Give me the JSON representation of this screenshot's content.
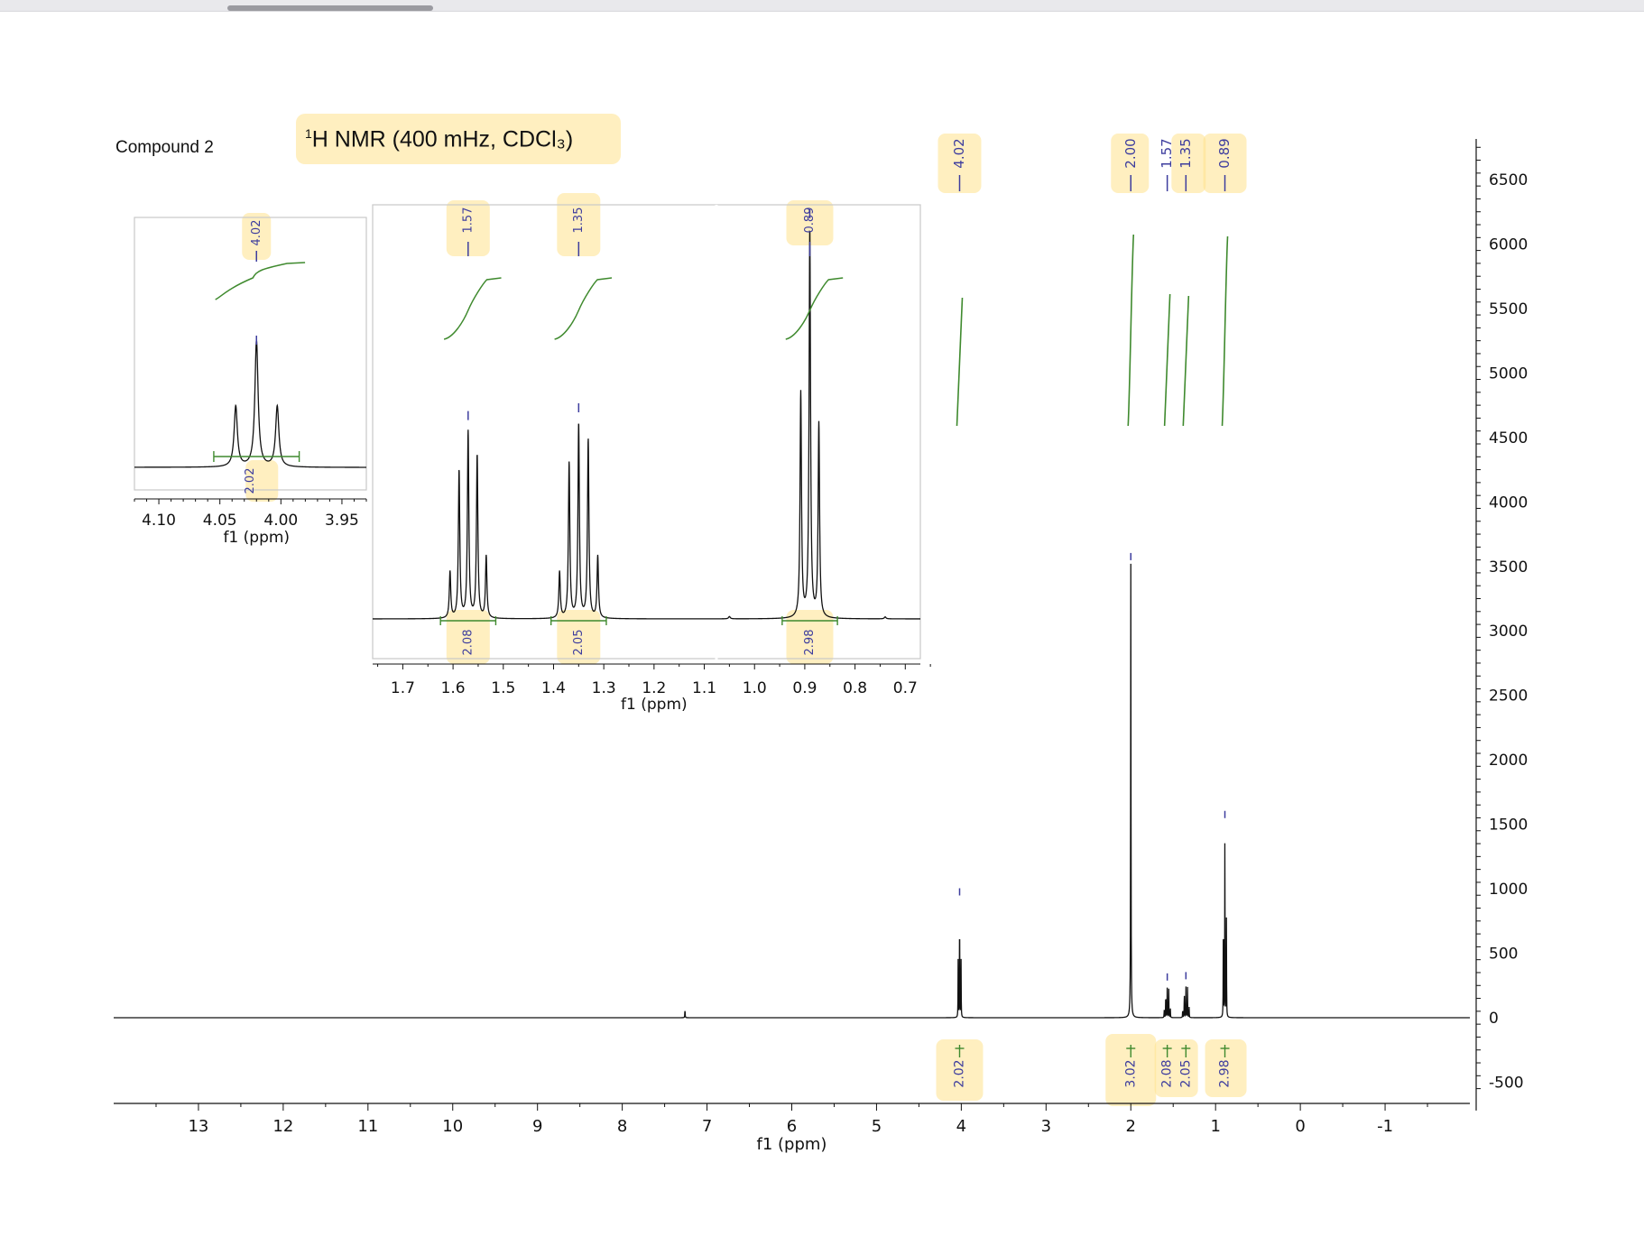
{
  "title": {
    "compound": "Compound 2",
    "method_sup": "1",
    "method_rest": "H NMR (400 mHz, CDCl₃)"
  },
  "chart_data": [
    {
      "id": "main",
      "type": "line",
      "xlabel": "f1 (ppm)",
      "ylabel": "",
      "xlim": [
        14,
        -2
      ],
      "ylim": [
        -650,
        6500
      ],
      "x_ticks": [
        "13",
        "12",
        "11",
        "10",
        "9",
        "8",
        "7",
        "6",
        "5",
        "4",
        "3",
        "2",
        "1",
        "0",
        "-1"
      ],
      "y_ticks": [
        "6500",
        "6000",
        "5500",
        "5000",
        "4500",
        "4000",
        "3500",
        "3000",
        "2500",
        "2000",
        "1500",
        "1000",
        "500",
        "0",
        "-500"
      ],
      "peak_labels": [
        "4.02",
        "2.00",
        "1.57",
        "1.35",
        "0.89"
      ],
      "peaks": [
        {
          "shift": 7.26,
          "height": 60
        },
        {
          "shift": 4.02,
          "height": 920
        },
        {
          "shift": 2.0,
          "height": 3520
        },
        {
          "shift": 1.57,
          "height": 260
        },
        {
          "shift": 1.35,
          "height": 270
        },
        {
          "shift": 0.89,
          "height": 1520
        }
      ],
      "integrals": [
        {
          "label": "2.02",
          "shift": 4.02
        },
        {
          "label": "3.02",
          "shift": 2.0
        },
        {
          "label": "2.08",
          "shift": 1.57
        },
        {
          "label": "2.05",
          "shift": 1.35
        },
        {
          "label": "2.98",
          "shift": 0.89
        }
      ]
    },
    {
      "id": "inset1",
      "type": "line",
      "xlabel": "f1 (ppm)",
      "xlim": [
        4.12,
        3.93
      ],
      "x_ticks": [
        "4.10",
        "4.05",
        "4.00",
        "3.95"
      ],
      "peak_labels": [
        "4.02"
      ],
      "multiplet": {
        "center": 4.02,
        "lines": [
          4.037,
          4.02,
          4.003
        ],
        "heights": [
          0.48,
          1.0,
          0.48
        ]
      },
      "integrals": [
        {
          "label": "2.02",
          "shift": 4.02
        }
      ]
    },
    {
      "id": "inset2",
      "type": "line",
      "xlabel": "f1 (ppm)",
      "xlim": [
        1.76,
        0.67
      ],
      "x_ticks": [
        "1.7",
        "1.6",
        "1.5",
        "1.4",
        "1.3",
        "1.2",
        "1.1",
        "1.0",
        "0.9",
        "0.8",
        "0.7"
      ],
      "peak_labels": [
        "1.57",
        "1.35",
        "0.89"
      ],
      "multiplets": [
        {
          "center": 1.57,
          "lines": [
            1.606,
            1.588,
            1.57,
            1.552,
            1.534
          ],
          "heights": [
            0.12,
            0.38,
            0.48,
            0.42,
            0.16
          ]
        },
        {
          "center": 1.35,
          "lines": [
            1.388,
            1.369,
            1.35,
            1.331,
            1.312
          ],
          "heights": [
            0.12,
            0.4,
            0.5,
            0.46,
            0.16
          ]
        },
        {
          "center": 0.89,
          "lines": [
            0.908,
            0.89,
            0.872
          ],
          "heights": [
            0.58,
            1.0,
            0.5
          ]
        }
      ],
      "integrals": [
        {
          "label": "2.08",
          "shift": 1.57
        },
        {
          "label": "2.05",
          "shift": 1.35
        },
        {
          "label": "2.98",
          "shift": 0.89
        }
      ]
    }
  ]
}
